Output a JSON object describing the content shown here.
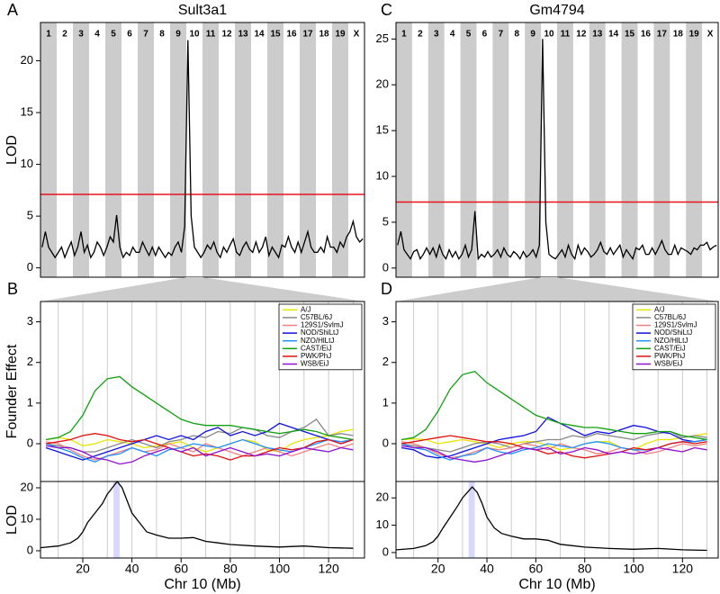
{
  "chart_data": [
    {
      "type": "genome_scan",
      "panel": "A",
      "title": "Sult3a1",
      "ylabel": "LOD",
      "chromosomes": [
        "1",
        "2",
        "3",
        "4",
        "5",
        "6",
        "7",
        "8",
        "9",
        "10",
        "11",
        "12",
        "13",
        "14",
        "15",
        "16",
        "17",
        "18",
        "19",
        "X"
      ],
      "band_color": "#cccccc",
      "color": "#000000",
      "threshold": 7.1,
      "threshold_color": "#e8141b",
      "values": [
        2,
        3.5,
        2,
        1.5,
        1,
        1.5,
        2,
        1,
        1.8,
        2.5,
        1.2,
        2,
        3.5,
        1.5,
        2.2,
        1,
        1.5,
        2.5,
        2,
        1.2,
        2,
        3,
        2.5,
        5.1,
        2,
        1,
        1.5,
        1.2,
        2,
        1.5,
        1.5,
        2.5,
        1.8,
        1.2,
        2,
        1.2,
        2,
        1.5,
        1,
        1.5,
        1.2,
        2,
        2.5,
        1.5,
        4,
        22,
        5,
        2,
        1.5,
        1,
        1.5,
        2.2,
        1.8,
        2.5,
        1.5,
        1,
        2,
        1.5,
        2.2,
        2.8,
        1.5,
        1.2,
        2,
        2.5,
        1.8,
        1.5,
        2.5,
        1.5,
        2,
        3,
        1.2,
        2,
        1.5,
        1,
        2.2,
        2,
        3,
        2,
        1.5,
        2.5,
        1.5,
        2.5,
        3.5,
        2,
        1.5,
        1.5,
        2,
        1.5,
        3,
        2,
        2,
        1.5,
        2.5,
        2,
        3,
        3.5,
        4.5,
        3,
        2.5,
        2.8
      ],
      "ylim": [
        -0.9,
        23.7
      ],
      "yticks": [
        0,
        5,
        10,
        15,
        20
      ]
    },
    {
      "type": "founder",
      "panel": "B",
      "ylabel": "Founder Effect",
      "x": [
        5,
        10,
        15,
        20,
        25,
        30,
        35,
        40,
        45,
        50,
        55,
        60,
        65,
        70,
        75,
        80,
        85,
        90,
        95,
        100,
        105,
        110,
        115,
        120,
        125,
        130
      ],
      "series": [
        {
          "name": "A/J",
          "color": "#e6e600",
          "values": [
            0.1,
            0.15,
            0.1,
            -0.05,
            0,
            0.1,
            0.05,
            0,
            -0.1,
            -0.05,
            0,
            0.05,
            -0.1,
            -0.2,
            -0.1,
            0,
            0.1,
            0.05,
            -0.15,
            -0.2,
            0,
            0.1,
            0.15,
            0.2,
            0.3,
            0.35
          ]
        },
        {
          "name": "C57BL/6J",
          "color": "#888888",
          "values": [
            0,
            -0.05,
            -0.1,
            -0.2,
            -0.2,
            -0.1,
            0,
            0.1,
            0,
            -0.1,
            0.05,
            0.1,
            0.2,
            0.15,
            0.3,
            0.25,
            0.4,
            0.35,
            0.2,
            0.15,
            0.3,
            0.4,
            0.6,
            0.2,
            0.25,
            0.2
          ]
        },
        {
          "name": "129S1/SvImJ",
          "color": "#f08080",
          "values": [
            0.05,
            0,
            -0.15,
            -0.3,
            -0.4,
            -0.3,
            -0.2,
            -0.1,
            -0.2,
            -0.15,
            0,
            -0.1,
            -0.2,
            0,
            -0.1,
            -0.2,
            -0.3,
            -0.2,
            -0.1,
            -0.2,
            -0.3,
            -0.2,
            -0.1,
            0,
            -0.1,
            0
          ]
        },
        {
          "name": "NOD/ShiLtJ",
          "color": "#1010e0",
          "values": [
            -0.1,
            -0.2,
            -0.3,
            -0.4,
            -0.3,
            -0.2,
            -0.1,
            0,
            0.1,
            0.2,
            0.1,
            0.2,
            0.1,
            0.3,
            0.4,
            0.2,
            0.3,
            0.2,
            0.3,
            0.5,
            0.4,
            0.3,
            0.2,
            0.1,
            0,
            0.1
          ]
        },
        {
          "name": "NZO/HlLtJ",
          "color": "#1e90ff",
          "values": [
            0,
            -0.1,
            -0.2,
            -0.35,
            -0.45,
            -0.3,
            -0.25,
            -0.1,
            -0.2,
            -0.3,
            -0.15,
            -0.1,
            0,
            -0.05,
            -0.1,
            0,
            0.1,
            0,
            -0.1,
            -0.15,
            -0.2,
            -0.1,
            0,
            0.1,
            0.05,
            0.1
          ]
        },
        {
          "name": "CAST/EiJ",
          "color": "#10a010",
          "values": [
            0.1,
            0.15,
            0.3,
            0.7,
            1.3,
            1.6,
            1.65,
            1.4,
            1.2,
            1.0,
            0.8,
            0.6,
            0.5,
            0.45,
            0.45,
            0.45,
            0.4,
            0.35,
            0.3,
            0.25,
            0.3,
            0.35,
            0.3,
            0.2,
            0.15,
            0.1
          ]
        },
        {
          "name": "PWK/PhJ",
          "color": "#e01010",
          "values": [
            0,
            0.05,
            0.1,
            0.2,
            0.25,
            0.2,
            0.1,
            0.05,
            0.1,
            0,
            -0.1,
            -0.2,
            -0.3,
            -0.25,
            -0.3,
            -0.4,
            -0.3,
            -0.3,
            -0.2,
            -0.1,
            -0.15,
            -0.1,
            0.05,
            0.1,
            0,
            0.1
          ]
        },
        {
          "name": "WSB/EiJ",
          "color": "#9010d0",
          "values": [
            -0.05,
            -0.1,
            -0.1,
            -0.2,
            -0.35,
            -0.4,
            -0.5,
            -0.45,
            -0.3,
            -0.2,
            -0.1,
            -0.2,
            -0.1,
            -0.3,
            -0.2,
            -0.1,
            -0.2,
            -0.3,
            -0.25,
            -0.3,
            -0.2,
            -0.1,
            -0.15,
            -0.2,
            -0.1,
            -0.15
          ]
        }
      ],
      "xlim": [
        2.8,
        134.6
      ],
      "xgrid": [
        10,
        20,
        30,
        40,
        50,
        60,
        70,
        80,
        90,
        100,
        110,
        120,
        130
      ],
      "ylim": [
        -0.93,
        3.5
      ],
      "yticks": [
        0,
        1,
        2,
        3
      ],
      "legend": "upper right"
    },
    {
      "type": "lod",
      "ylabel": "LOD",
      "xlabel": "Chr 10 (Mb)",
      "color": "#000000",
      "highlight_color": "#d8d8ff",
      "x": [
        3,
        10,
        15,
        18,
        20,
        22,
        25,
        28,
        30,
        32,
        34,
        36,
        38,
        40,
        43,
        46,
        50,
        55,
        60,
        65,
        70,
        75,
        80,
        90,
        100,
        110,
        120,
        130
      ],
      "values": [
        1,
        1.5,
        2.5,
        4,
        6,
        9,
        12,
        15,
        18,
        20,
        22,
        20,
        16,
        12,
        9,
        6,
        5,
        4,
        4,
        4.2,
        3,
        2.5,
        2,
        1.5,
        1.2,
        1.5,
        1,
        0.8
      ],
      "highlight": [
        32.5,
        35
      ],
      "xlim": [
        2.8,
        134.6
      ],
      "xticks": [
        20,
        40,
        60,
        80,
        100,
        120
      ],
      "xgrid": [
        10,
        20,
        30,
        40,
        50,
        60,
        70,
        80,
        90,
        100,
        110,
        120,
        130
      ],
      "ylim": [
        -2.3,
        22
      ],
      "yticks": [
        0,
        10,
        20
      ]
    },
    {
      "type": "genome_scan",
      "panel": "C",
      "title": "Gm4794",
      "chromosomes": [
        "1",
        "2",
        "3",
        "4",
        "5",
        "6",
        "7",
        "8",
        "9",
        "10",
        "11",
        "12",
        "13",
        "14",
        "15",
        "16",
        "17",
        "18",
        "19",
        "X"
      ],
      "band_color": "#cccccc",
      "color": "#000000",
      "threshold": 7.2,
      "threshold_color": "#e8141b",
      "values": [
        2.5,
        4,
        2,
        1.5,
        1,
        1.8,
        2,
        1,
        1.5,
        2.2,
        1.5,
        2.2,
        1.2,
        2.5,
        1.5,
        1,
        2,
        1.2,
        1.8,
        1,
        1.5,
        2.5,
        1.2,
        2,
        6.2,
        1,
        1.5,
        1.2,
        1.8,
        1.2,
        1.5,
        2,
        1.2,
        2.2,
        1.5,
        1.2,
        1.8,
        1.5,
        1,
        1.8,
        1.2,
        1.5,
        2,
        1.2,
        2.5,
        25,
        5,
        1.5,
        1.2,
        1,
        1.5,
        2,
        1.2,
        2.5,
        1.5,
        1,
        2.5,
        1.5,
        2.2,
        1.8,
        1.2,
        1.5,
        2,
        2.8,
        1.8,
        1.5,
        2.2,
        1.5,
        2,
        2.5,
        1.2,
        2,
        1.5,
        1,
        2.2,
        2,
        2.5,
        1.5,
        1.5,
        2.2,
        1.5,
        2.2,
        3,
        2,
        1.5,
        1.5,
        2.5,
        1.5,
        2.2,
        2,
        1.8,
        1.5,
        2.2,
        2,
        2.5,
        2.5,
        2.8,
        2,
        2.3,
        2.5
      ],
      "ylim": [
        -1.0,
        26.8
      ],
      "yticks": [
        0,
        5,
        10,
        15,
        20,
        25
      ]
    },
    {
      "type": "founder",
      "panel": "D",
      "x": [
        5,
        10,
        15,
        20,
        25,
        30,
        35,
        40,
        45,
        50,
        55,
        60,
        65,
        70,
        75,
        80,
        85,
        90,
        95,
        100,
        105,
        110,
        115,
        120,
        125,
        130
      ],
      "series": [
        {
          "name": "A/J",
          "color": "#e6e600",
          "values": [
            0.1,
            0.12,
            0.1,
            0,
            0.05,
            0.1,
            0.05,
            0,
            -0.1,
            0,
            0.05,
            0.05,
            -0.05,
            -0.15,
            -0.1,
            0,
            0.05,
            0.05,
            -0.1,
            -0.15,
            0,
            0.1,
            0.1,
            0.15,
            0.2,
            0.25
          ]
        },
        {
          "name": "C57BL/6J",
          "color": "#888888",
          "values": [
            0,
            -0.05,
            -0.1,
            -0.15,
            -0.2,
            -0.1,
            0,
            0.05,
            0,
            -0.1,
            0,
            0.05,
            0.1,
            0.1,
            0.2,
            0.15,
            0.25,
            0.2,
            0.15,
            0.1,
            0.2,
            0.25,
            0.3,
            0.15,
            0.2,
            0.15
          ]
        },
        {
          "name": "129S1/SvImJ",
          "color": "#f08080",
          "values": [
            0.05,
            0,
            -0.1,
            -0.25,
            -0.35,
            -0.3,
            -0.2,
            -0.1,
            -0.15,
            -0.1,
            0,
            -0.05,
            -0.15,
            0,
            -0.1,
            -0.15,
            -0.25,
            -0.2,
            -0.1,
            -0.15,
            -0.25,
            -0.2,
            -0.1,
            0,
            -0.05,
            0
          ]
        },
        {
          "name": "NOD/ShiLtJ",
          "color": "#1010e0",
          "values": [
            -0.1,
            -0.15,
            -0.3,
            -0.35,
            -0.3,
            -0.2,
            -0.1,
            0,
            0.1,
            0.15,
            0.2,
            0.3,
            0.65,
            0.5,
            0.35,
            0.2,
            0.3,
            0.25,
            0.35,
            0.45,
            0.4,
            0.3,
            0.25,
            0.1,
            0.05,
            0.1
          ]
        },
        {
          "name": "NZO/HlLtJ",
          "color": "#1e90ff",
          "values": [
            0,
            -0.1,
            -0.15,
            -0.3,
            -0.4,
            -0.3,
            -0.25,
            -0.1,
            -0.2,
            -0.25,
            -0.15,
            -0.1,
            0,
            -0.05,
            -0.1,
            0,
            0.05,
            0,
            -0.1,
            -0.15,
            -0.15,
            -0.1,
            0,
            0.05,
            0.05,
            0.1
          ]
        },
        {
          "name": "CAST/EiJ",
          "color": "#10a010",
          "values": [
            0.1,
            0.15,
            0.35,
            0.8,
            1.35,
            1.7,
            1.78,
            1.5,
            1.3,
            1.1,
            0.9,
            0.7,
            0.6,
            0.5,
            0.45,
            0.4,
            0.4,
            0.35,
            0.3,
            0.25,
            0.25,
            0.3,
            0.3,
            0.2,
            0.15,
            0.1
          ]
        },
        {
          "name": "PWK/PhJ",
          "color": "#e01010",
          "values": [
            0,
            0.05,
            0.1,
            0.15,
            0.2,
            0.15,
            0.1,
            0.05,
            0.05,
            0,
            -0.1,
            -0.15,
            -0.25,
            -0.2,
            -0.3,
            -0.35,
            -0.3,
            -0.25,
            -0.2,
            -0.1,
            -0.15,
            -0.1,
            0,
            0.05,
            0,
            0.05
          ]
        },
        {
          "name": "WSB/EiJ",
          "color": "#9010d0",
          "values": [
            -0.05,
            -0.1,
            -0.1,
            -0.2,
            -0.35,
            -0.4,
            -0.45,
            -0.4,
            -0.3,
            -0.2,
            -0.1,
            -0.15,
            -0.1,
            -0.25,
            -0.2,
            -0.1,
            -0.15,
            -0.25,
            -0.2,
            -0.25,
            -0.2,
            -0.1,
            -0.15,
            -0.2,
            -0.1,
            -0.15
          ]
        }
      ],
      "xlim": [
        2.8,
        134.6
      ],
      "xgrid": [
        10,
        20,
        30,
        40,
        50,
        60,
        70,
        80,
        90,
        100,
        110,
        120,
        130
      ],
      "ylim": [
        -0.93,
        3.5
      ],
      "yticks": [
        0,
        1,
        2,
        3
      ],
      "legend": "upper right"
    },
    {
      "type": "lod",
      "xlabel": "Chr 10 (Mb)",
      "color": "#000000",
      "highlight_color": "#d8d8ff",
      "x": [
        3,
        10,
        15,
        18,
        20,
        22,
        25,
        28,
        30,
        32,
        34,
        36,
        38,
        40,
        43,
        46,
        50,
        55,
        60,
        65,
        70,
        75,
        80,
        90,
        100,
        110,
        120,
        130
      ],
      "values": [
        1,
        1.5,
        2.5,
        4,
        6,
        9,
        13,
        17,
        20,
        22,
        24,
        22,
        18,
        13,
        9,
        7,
        6,
        5,
        5,
        4.5,
        3,
        2.5,
        2,
        1.5,
        1.2,
        1.5,
        1,
        0.8
      ],
      "highlight": [
        32.5,
        35
      ],
      "xlim": [
        2.8,
        134.6
      ],
      "xticks": [
        20,
        40,
        60,
        80,
        100,
        120
      ],
      "xgrid": [
        10,
        20,
        30,
        40,
        50,
        60,
        70,
        80,
        90,
        100,
        110,
        120,
        130
      ],
      "ylim": [
        -2,
        26
      ],
      "yticks": [
        0,
        10,
        20
      ]
    }
  ]
}
